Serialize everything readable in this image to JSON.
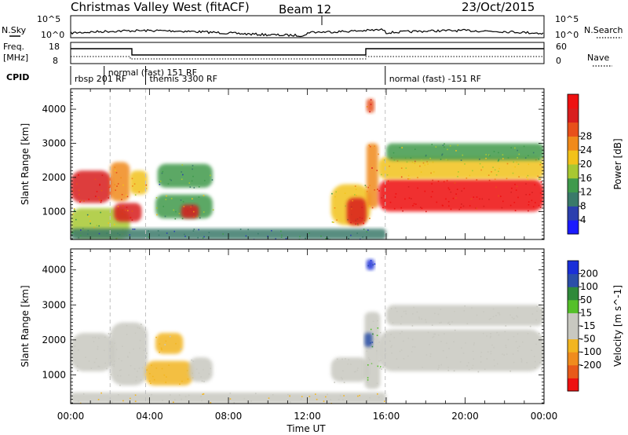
{
  "header": {
    "station": "Christmas Valley West (fitACF)",
    "beam": "Beam 12",
    "date": "23/Oct/2015"
  },
  "labels": {
    "nsky": "N.Sky",
    "nsearch": "N.Search",
    "freq_top": "Freq.",
    "freq_unit": "[MHz]",
    "nave": "Nave",
    "cpid": "CPID"
  },
  "top_axes": {
    "noise_ticks_left": [
      "10^5",
      "10^0"
    ],
    "noise_ticks_right": [
      "10^5",
      "10^0"
    ],
    "freq_ticks_left": [
      "18",
      "8"
    ],
    "nave_ticks_right": [
      "60",
      "0"
    ]
  },
  "cpid_segments": [
    {
      "text": "rbsp  201  RF",
      "start": 0.0
    },
    {
      "text": "normal  (fast)  151  RF",
      "start": 1.7
    },
    {
      "text": "themis  3300  RF",
      "start": 3.8
    },
    {
      "text": "normal  (fast)  -151  RF",
      "start": 15.95
    }
  ],
  "colors": {
    "power_scale": [
      "#1a1aff",
      "#2b3fae",
      "#3a7a6a",
      "#3f9a4c",
      "#a8c832",
      "#f2c21a",
      "#f08a1a",
      "#e8501a",
      "#d81e1e",
      "#ee1111"
    ],
    "velocity_scale": [
      "#ee1111",
      "#e85a1a",
      "#f08c1e",
      "#f2b520",
      "#c8c8c0",
      "#c8c8c0",
      "#55c02a",
      "#2f8a3a",
      "#2b4fa8",
      "#1a2fd8"
    ],
    "gray_marker": "#c0c0c0"
  },
  "chart_data": [
    {
      "type": "heatmap",
      "title": "",
      "xlabel": "",
      "ylabel": "Slant Range [km]",
      "xlim": [
        0,
        24
      ],
      "ylim": [
        180,
        4600
      ],
      "yticks": [
        1000,
        2000,
        3000,
        4000
      ],
      "colorbar": {
        "label": "Power [dB]",
        "range": [
          0,
          32
        ],
        "ticks": [
          "4",
          "8",
          "12",
          "16",
          "20",
          "24",
          "28"
        ]
      },
      "dashed_time_markers": [
        2.0,
        3.8,
        15.95
      ],
      "regions": [
        {
          "t0": 0.0,
          "t1": 2.1,
          "r0": 1250,
          "r1": 2200,
          "level": 28
        },
        {
          "t0": 0.0,
          "t1": 3.0,
          "r0": 200,
          "r1": 1100,
          "level": 14
        },
        {
          "t0": 2.0,
          "t1": 3.0,
          "r0": 1300,
          "r1": 2450,
          "level": 22
        },
        {
          "t0": 2.2,
          "t1": 3.6,
          "r0": 700,
          "r1": 1250,
          "level": 26
        },
        {
          "t0": 3.0,
          "t1": 3.9,
          "r0": 1500,
          "r1": 2200,
          "level": 18
        },
        {
          "t0": 4.4,
          "t1": 7.2,
          "r0": 1700,
          "r1": 2400,
          "level": 10
        },
        {
          "t0": 4.3,
          "t1": 7.2,
          "r0": 800,
          "r1": 1500,
          "level": 12
        },
        {
          "t0": 5.6,
          "t1": 6.5,
          "r0": 800,
          "r1": 1200,
          "level": 26
        },
        {
          "t0": 0.0,
          "t1": 16.0,
          "r0": 180,
          "r1": 500,
          "level": 8
        },
        {
          "t0": 13.2,
          "t1": 15.2,
          "r0": 600,
          "r1": 1800,
          "level": 16
        },
        {
          "t0": 14.0,
          "t1": 15.0,
          "r0": 600,
          "r1": 1400,
          "level": 26
        },
        {
          "t0": 15.0,
          "t1": 15.6,
          "r0": 1100,
          "r1": 3000,
          "level": 22
        },
        {
          "t0": 15.0,
          "t1": 15.4,
          "r0": 3900,
          "r1": 4300,
          "level": 24
        },
        {
          "t0": 15.6,
          "t1": 24.0,
          "r0": 1000,
          "r1": 1950,
          "level": 30
        },
        {
          "t0": 15.6,
          "t1": 24.0,
          "r0": 1950,
          "r1": 2600,
          "level": 18
        },
        {
          "t0": 16.0,
          "t1": 24.0,
          "r0": 2500,
          "r1": 3000,
          "level": 12
        }
      ]
    },
    {
      "type": "heatmap",
      "title": "",
      "xlabel": "Time UT",
      "ylabel": "Slant Range [km]",
      "xlim": [
        0,
        24
      ],
      "ylim": [
        180,
        4600
      ],
      "xticks": [
        "00:00",
        "04:00",
        "08:00",
        "12:00",
        "16:00",
        "20:00",
        "00:00"
      ],
      "yticks": [
        1000,
        2000,
        3000,
        4000
      ],
      "colorbar": {
        "label": "Velocity [m s^-1]",
        "range": [
          -250,
          250
        ],
        "ticks": [
          "200",
          "100",
          "50",
          "15",
          "-15",
          "-50",
          "-100",
          "-200"
        ]
      },
      "dashed_time_markers": [
        2.0,
        3.8,
        15.95
      ],
      "regions": [
        {
          "t0": 0.0,
          "t1": 2.2,
          "r0": 1100,
          "r1": 2200,
          "level": 0
        },
        {
          "t0": 2.0,
          "t1": 3.9,
          "r0": 700,
          "r1": 2500,
          "level": 0
        },
        {
          "t0": 4.3,
          "t1": 5.7,
          "r0": 1600,
          "r1": 2200,
          "level": -70
        },
        {
          "t0": 3.8,
          "t1": 6.2,
          "r0": 700,
          "r1": 1400,
          "level": -70
        },
        {
          "t0": 6.0,
          "t1": 7.2,
          "r0": 800,
          "r1": 1500,
          "level": 0
        },
        {
          "t0": 0.0,
          "t1": 16.0,
          "r0": 180,
          "r1": 500,
          "level": -40
        },
        {
          "t0": 13.2,
          "t1": 15.1,
          "r0": 800,
          "r1": 1500,
          "level": 0
        },
        {
          "t0": 14.9,
          "t1": 15.7,
          "r0": 600,
          "r1": 2800,
          "level": 40
        },
        {
          "t0": 14.9,
          "t1": 15.3,
          "r0": 1800,
          "r1": 2200,
          "level": 150
        },
        {
          "t0": 15.0,
          "t1": 15.4,
          "r0": 4000,
          "r1": 4300,
          "level": 200
        },
        {
          "t0": 15.6,
          "t1": 24.0,
          "r0": 1100,
          "r1": 2300,
          "level": 0
        },
        {
          "t0": 16.0,
          "t1": 24.0,
          "r0": 2400,
          "r1": 3000,
          "level": 0
        }
      ]
    }
  ]
}
